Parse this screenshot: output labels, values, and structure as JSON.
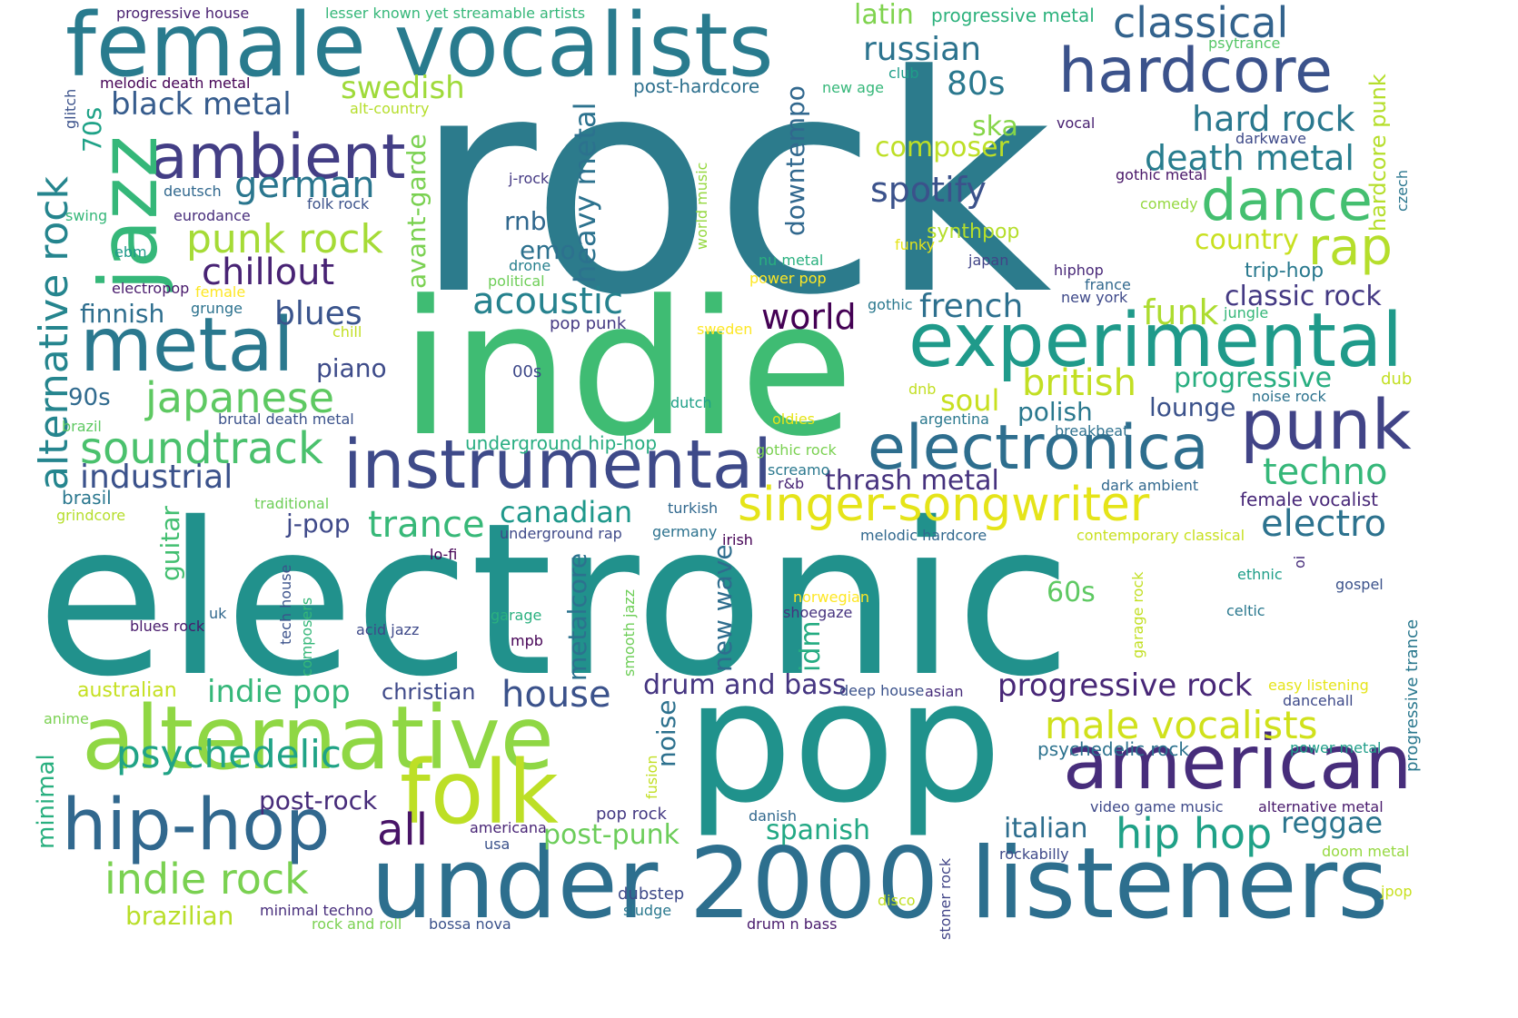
{
  "words": [
    {
      "text": "rock",
      "color": "#2c7b8c",
      "vertical": false
    },
    {
      "text": "electronic",
      "color": "#21918c",
      "vertical": false
    },
    {
      "text": "indie",
      "color": "#3fbc73",
      "vertical": false
    },
    {
      "text": "pop",
      "color": "#20928c",
      "vertical": false
    },
    {
      "text": "female vocalists",
      "color": "#297b8e",
      "vertical": false
    },
    {
      "text": "under 2000 listeners",
      "color": "#2d6f8e",
      "vertical": false
    },
    {
      "text": "experimental",
      "color": "#1f9a8a",
      "vertical": false
    },
    {
      "text": "alternative",
      "color": "#8fd744",
      "vertical": false
    },
    {
      "text": "metal",
      "color": "#2a788e",
      "vertical": false
    },
    {
      "text": "american",
      "color": "#472d7b",
      "vertical": false
    },
    {
      "text": "folk",
      "color": "#bddf26",
      "vertical": false
    },
    {
      "text": "hip-hop",
      "color": "#31688e",
      "vertical": false
    },
    {
      "text": "instrumental",
      "color": "#3e4a89",
      "vertical": false
    },
    {
      "text": "electronica",
      "color": "#2e6e8e",
      "vertical": false
    },
    {
      "text": "punk",
      "color": "#414487",
      "vertical": false
    },
    {
      "text": "hardcore",
      "color": "#3b528b",
      "vertical": false
    },
    {
      "text": "ambient",
      "color": "#433e85",
      "vertical": false
    },
    {
      "text": "jazz",
      "color": "#35b779",
      "vertical": true
    },
    {
      "text": "singer-songwriter",
      "color": "#e5e419",
      "vertical": false
    },
    {
      "text": "dance",
      "color": "#44bf70",
      "vertical": false
    },
    {
      "text": "rap",
      "color": "#b5de2b",
      "vertical": false
    },
    {
      "text": "classical",
      "color": "#33638d",
      "vertical": false
    },
    {
      "text": "japanese",
      "color": "#5ec962",
      "vertical": false
    },
    {
      "text": "soundtrack",
      "color": "#4ac16d",
      "vertical": false
    },
    {
      "text": "psychedelic",
      "color": "#20a386",
      "vertical": false
    },
    {
      "text": "indie rock",
      "color": "#7ad151",
      "vertical": false
    },
    {
      "text": "hip hop",
      "color": "#1fa187",
      "vertical": false
    },
    {
      "text": "male vocalists",
      "color": "#d0e11c",
      "vertical": false
    },
    {
      "text": "alternative rock",
      "color": "#25858e",
      "vertical": true
    },
    {
      "text": "punk rock",
      "color": "#a5db36",
      "vertical": false
    },
    {
      "text": "chillout",
      "color": "#482374",
      "vertical": false
    },
    {
      "text": "german",
      "color": "#2a768e",
      "vertical": false
    },
    {
      "text": "acoustic",
      "color": "#26828e",
      "vertical": false
    },
    {
      "text": "world",
      "color": "#440154",
      "vertical": false
    },
    {
      "text": "trance",
      "color": "#37b878",
      "vertical": false
    },
    {
      "text": "house",
      "color": "#3b528b",
      "vertical": false
    },
    {
      "text": "all",
      "color": "#481467",
      "vertical": false
    },
    {
      "text": "electro",
      "color": "#2c728e",
      "vertical": false
    },
    {
      "text": "techno",
      "color": "#35b779",
      "vertical": false
    },
    {
      "text": "death metal",
      "color": "#287d8e",
      "vertical": false
    },
    {
      "text": "hard rock",
      "color": "#2a788e",
      "vertical": false
    },
    {
      "text": "british",
      "color": "#c2df23",
      "vertical": false
    },
    {
      "text": "spotify",
      "color": "#3b528b",
      "vertical": false
    },
    {
      "text": "russian",
      "color": "#2c738e",
      "vertical": false
    },
    {
      "text": "swedish",
      "color": "#9fda3a",
      "vertical": false
    },
    {
      "text": "black metal",
      "color": "#365c8d",
      "vertical": false
    },
    {
      "text": "blues",
      "color": "#3a548c",
      "vertical": false
    },
    {
      "text": "heavy metal",
      "color": "#2c728e",
      "vertical": true
    },
    {
      "text": "avant-garde",
      "color": "#7ad151",
      "vertical": true
    },
    {
      "text": "downtempo",
      "color": "#31688e",
      "vertical": true
    },
    {
      "text": "french",
      "color": "#2d708e",
      "vertical": false
    },
    {
      "text": "funk",
      "color": "#addc30",
      "vertical": false
    },
    {
      "text": "soul",
      "color": "#c8e020",
      "vertical": false
    },
    {
      "text": "classic rock",
      "color": "#443983",
      "vertical": false
    },
    {
      "text": "progressive",
      "color": "#28ae80",
      "vertical": false
    },
    {
      "text": "progressive rock",
      "color": "#482777",
      "vertical": false
    },
    {
      "text": "drum and bass",
      "color": "#453581",
      "vertical": false
    },
    {
      "text": "indie pop",
      "color": "#35b779",
      "vertical": false
    },
    {
      "text": "industrial",
      "color": "#3b528b",
      "vertical": false
    },
    {
      "text": "post-rock",
      "color": "#472c7a",
      "vertical": false
    },
    {
      "text": "post-punk",
      "color": "#6ccd5a",
      "vertical": false
    },
    {
      "text": "canadian",
      "color": "#1f988b",
      "vertical": false
    },
    {
      "text": "thrash metal",
      "color": "#46327e",
      "vertical": false
    },
    {
      "text": "reggae",
      "color": "#2b758e",
      "vertical": false
    },
    {
      "text": "italian",
      "color": "#2e6e8e",
      "vertical": false
    },
    {
      "text": "spanish",
      "color": "#22a884",
      "vertical": false
    },
    {
      "text": "noise",
      "color": "#2d718e",
      "vertical": true
    },
    {
      "text": "new wave",
      "color": "#2e6d8e",
      "vertical": true
    },
    {
      "text": "idm",
      "color": "#25ac82",
      "vertical": true
    },
    {
      "text": "metalcore",
      "color": "#2c728e",
      "vertical": true
    },
    {
      "text": "guitar",
      "color": "#43bf71",
      "vertical": true
    },
    {
      "text": "minimal",
      "color": "#29af7f",
      "vertical": true
    },
    {
      "text": "finnish",
      "color": "#2e6e8e",
      "vertical": false
    },
    {
      "text": "piano",
      "color": "#3e4c8a",
      "vertical": false
    },
    {
      "text": "90s",
      "color": "#306a8e",
      "vertical": false
    },
    {
      "text": "80s",
      "color": "#2a788e",
      "vertical": false
    },
    {
      "text": "70s",
      "color": "#1fa287",
      "vertical": true
    },
    {
      "text": "60s",
      "color": "#5ec962",
      "vertical": false
    },
    {
      "text": "latin",
      "color": "#7fd34e",
      "vertical": false
    },
    {
      "text": "composer",
      "color": "#bddf26",
      "vertical": false
    },
    {
      "text": "ska",
      "color": "#86d549",
      "vertical": false
    },
    {
      "text": "rnb",
      "color": "#31688e",
      "vertical": false
    },
    {
      "text": "emo",
      "color": "#2d718e",
      "vertical": false
    },
    {
      "text": "country",
      "color": "#c8e020",
      "vertical": false
    },
    {
      "text": "trip-hop",
      "color": "#29798e",
      "vertical": false
    },
    {
      "text": "lounge",
      "color": "#3b528b",
      "vertical": false
    },
    {
      "text": "polish",
      "color": "#2a788e",
      "vertical": false
    },
    {
      "text": "j-pop",
      "color": "#3e4989",
      "vertical": false
    },
    {
      "text": "brazilian",
      "color": "#b8de29",
      "vertical": false
    },
    {
      "text": "christian",
      "color": "#3e4989",
      "vertical": false
    },
    {
      "text": "australian",
      "color": "#c5e021",
      "vertical": false
    },
    {
      "text": "hardcore punk",
      "color": "#b5de2b",
      "vertical": true
    },
    {
      "text": "synthpop",
      "color": "#b5de2b",
      "vertical": false
    },
    {
      "text": "underground hip-hop",
      "color": "#27ad81",
      "vertical": false
    },
    {
      "text": "brasil",
      "color": "#2a778e",
      "vertical": false
    },
    {
      "text": "progressive house",
      "color": "#481f70",
      "vertical": false
    },
    {
      "text": "lesser known yet streamable artists",
      "color": "#35b779",
      "vertical": false
    },
    {
      "text": "progressive metal",
      "color": "#2db27d",
      "vertical": false
    },
    {
      "text": "psytrance",
      "color": "#56c667",
      "vertical": false
    },
    {
      "text": "melodic death metal",
      "color": "#440154",
      "vertical": false
    },
    {
      "text": "post-hardcore",
      "color": "#2d708e",
      "vertical": false
    },
    {
      "text": "alt-country",
      "color": "#b5de2b",
      "vertical": false
    },
    {
      "text": "new age",
      "color": "#35b779",
      "vertical": false
    },
    {
      "text": "club",
      "color": "#1f9e89",
      "vertical": false
    },
    {
      "text": "vocal",
      "color": "#482071",
      "vertical": false
    },
    {
      "text": "darkwave",
      "color": "#3e4a89",
      "vertical": false
    },
    {
      "text": "gothic metal",
      "color": "#481668",
      "vertical": false
    },
    {
      "text": "comedy",
      "color": "#95d840",
      "vertical": false
    },
    {
      "text": "czech",
      "color": "#2a768e",
      "vertical": true
    },
    {
      "text": "glitch",
      "color": "#3b528b",
      "vertical": true
    },
    {
      "text": "j-rock",
      "color": "#443983",
      "vertical": false
    },
    {
      "text": "world music",
      "color": "#95d840",
      "vertical": true
    },
    {
      "text": "deutsch",
      "color": "#31688e",
      "vertical": false
    },
    {
      "text": "folk rock",
      "color": "#3b528b",
      "vertical": false
    },
    {
      "text": "swing",
      "color": "#35b779",
      "vertical": false
    },
    {
      "text": "eurodance",
      "color": "#472d7b",
      "vertical": false
    },
    {
      "text": "ebm",
      "color": "#1f998a",
      "vertical": false
    },
    {
      "text": "electropop",
      "color": "#481a6c",
      "vertical": false
    },
    {
      "text": "female",
      "color": "#fde725",
      "vertical": false
    },
    {
      "text": "grunge",
      "color": "#2c728e",
      "vertical": false
    },
    {
      "text": "chill",
      "color": "#c2df23",
      "vertical": false
    },
    {
      "text": "drone",
      "color": "#27808e",
      "vertical": false
    },
    {
      "text": "political",
      "color": "#6ece58",
      "vertical": false
    },
    {
      "text": "nu metal",
      "color": "#2ab07f",
      "vertical": false
    },
    {
      "text": "power pop",
      "color": "#fde725",
      "vertical": false
    },
    {
      "text": "funky",
      "color": "#e5e419",
      "vertical": false
    },
    {
      "text": "japan",
      "color": "#414487",
      "vertical": false
    },
    {
      "text": "hiphop",
      "color": "#482878",
      "vertical": false
    },
    {
      "text": "france",
      "color": "#31688e",
      "vertical": false
    },
    {
      "text": "new york",
      "color": "#3e4989",
      "vertical": false
    },
    {
      "text": "gothic",
      "color": "#2a788e",
      "vertical": false
    },
    {
      "text": "jungle",
      "color": "#35b779",
      "vertical": false
    },
    {
      "text": "pop punk",
      "color": "#443983",
      "vertical": false
    },
    {
      "text": "sweden",
      "color": "#fde725",
      "vertical": false
    },
    {
      "text": "00s",
      "color": "#3e4989",
      "vertical": false
    },
    {
      "text": "dutch",
      "color": "#1fa088",
      "vertical": false
    },
    {
      "text": "dnb",
      "color": "#c2df23",
      "vertical": false
    },
    {
      "text": "argentina",
      "color": "#2a788e",
      "vertical": false
    },
    {
      "text": "breakbeat",
      "color": "#2d708e",
      "vertical": false
    },
    {
      "text": "noise rock",
      "color": "#2c728e",
      "vertical": false
    },
    {
      "text": "dub",
      "color": "#c2df23",
      "vertical": false
    },
    {
      "text": "brazil",
      "color": "#5ec962",
      "vertical": false
    },
    {
      "text": "brutal death metal",
      "color": "#3b528b",
      "vertical": false
    },
    {
      "text": "oldies",
      "color": "#e5e419",
      "vertical": false
    },
    {
      "text": "gothic rock",
      "color": "#7ad151",
      "vertical": false
    },
    {
      "text": "screamo",
      "color": "#2a788e",
      "vertical": false
    },
    {
      "text": "r&b",
      "color": "#482475",
      "vertical": false
    },
    {
      "text": "dark ambient",
      "color": "#31688e",
      "vertical": false
    },
    {
      "text": "female vocalist",
      "color": "#482878",
      "vertical": false
    },
    {
      "text": "traditional",
      "color": "#6ece58",
      "vertical": false
    },
    {
      "text": "grindcore",
      "color": "#b5de2b",
      "vertical": false
    },
    {
      "text": "turkish",
      "color": "#31688e",
      "vertical": false
    },
    {
      "text": "underground rap",
      "color": "#3e4989",
      "vertical": false
    },
    {
      "text": "germany",
      "color": "#2c728e",
      "vertical": false
    },
    {
      "text": "irish",
      "color": "#440154",
      "vertical": false
    },
    {
      "text": "melodic hardcore",
      "color": "#31688e",
      "vertical": false
    },
    {
      "text": "contemporary classical",
      "color": "#c8e020",
      "vertical": false
    },
    {
      "text": "lo-fi",
      "color": "#440154",
      "vertical": false
    },
    {
      "text": "ethnic",
      "color": "#1f9e89",
      "vertical": false
    },
    {
      "text": "oi",
      "color": "#472d7b",
      "vertical": true
    },
    {
      "text": "gospel",
      "color": "#3b528b",
      "vertical": false
    },
    {
      "text": "garage rock",
      "color": "#c2df23",
      "vertical": true
    },
    {
      "text": "uk",
      "color": "#31688e",
      "vertical": false
    },
    {
      "text": "tech house",
      "color": "#3b528b",
      "vertical": true
    },
    {
      "text": "composers",
      "color": "#35b779",
      "vertical": true
    },
    {
      "text": "smooth jazz",
      "color": "#6ece58",
      "vertical": true
    },
    {
      "text": "norwegian",
      "color": "#fde725",
      "vertical": false
    },
    {
      "text": "shoegaze",
      "color": "#46337f",
      "vertical": false
    },
    {
      "text": "celtic",
      "color": "#2a788e",
      "vertical": false
    },
    {
      "text": "blues rock",
      "color": "#481a6c",
      "vertical": false
    },
    {
      "text": "acid jazz",
      "color": "#3e4989",
      "vertical": false
    },
    {
      "text": "garage",
      "color": "#2ab07f",
      "vertical": false
    },
    {
      "text": "mpb",
      "color": "#440154",
      "vertical": false
    },
    {
      "text": "progressive trance",
      "color": "#2a788e",
      "vertical": true
    },
    {
      "text": "deep house",
      "color": "#3b528b",
      "vertical": false
    },
    {
      "text": "asian",
      "color": "#472d7b",
      "vertical": false
    },
    {
      "text": "easy listening",
      "color": "#e5e419",
      "vertical": false
    },
    {
      "text": "dancehall",
      "color": "#3e4a89",
      "vertical": false
    },
    {
      "text": "anime",
      "color": "#7ad151",
      "vertical": false
    },
    {
      "text": "fusion",
      "color": "#c2df23",
      "vertical": true
    },
    {
      "text": "psychedelic rock",
      "color": "#2c728e",
      "vertical": false
    },
    {
      "text": "power metal",
      "color": "#1f9e89",
      "vertical": false
    },
    {
      "text": "pop rock",
      "color": "#443983",
      "vertical": false
    },
    {
      "text": "danish",
      "color": "#31688e",
      "vertical": false
    },
    {
      "text": "video game music",
      "color": "#3e4989",
      "vertical": false
    },
    {
      "text": "alternative metal",
      "color": "#481a6c",
      "vertical": false
    },
    {
      "text": "americana",
      "color": "#482475",
      "vertical": false
    },
    {
      "text": "usa",
      "color": "#3b528b",
      "vertical": false
    },
    {
      "text": "stoner rock",
      "color": "#414487",
      "vertical": true
    },
    {
      "text": "rockabilly",
      "color": "#3e4989",
      "vertical": false
    },
    {
      "text": "doom metal",
      "color": "#95d840",
      "vertical": false
    },
    {
      "text": "dubstep",
      "color": "#3e4a89",
      "vertical": false
    },
    {
      "text": "sludge",
      "color": "#2a788e",
      "vertical": false
    },
    {
      "text": "minimal techno",
      "color": "#472d7b",
      "vertical": false
    },
    {
      "text": "rock and roll",
      "color": "#7ad151",
      "vertical": false
    },
    {
      "text": "bossa nova",
      "color": "#3b528b",
      "vertical": false
    },
    {
      "text": "drum n bass",
      "color": "#481a6c",
      "vertical": false
    },
    {
      "text": "disco",
      "color": "#c2df23",
      "vertical": false
    },
    {
      "text": "jpop",
      "color": "#c8e020",
      "vertical": false
    }
  ]
}
